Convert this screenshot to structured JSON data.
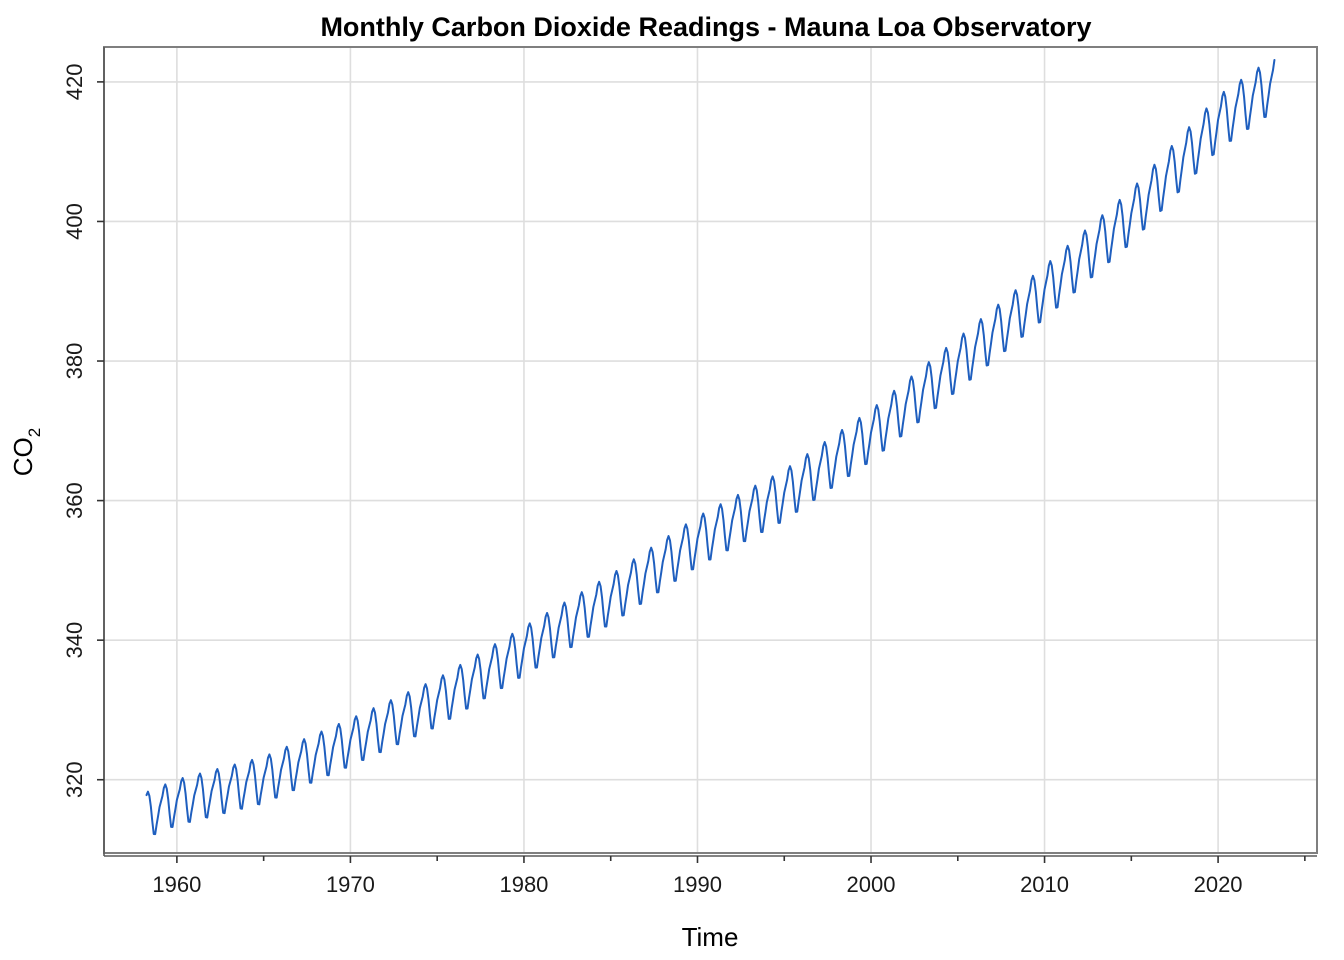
{
  "chart_data": {
    "type": "line",
    "title": "Monthly Carbon Dioxide Readings - Mauna Loa Observatory",
    "xlabel": "Time",
    "ylabel": "CO",
    "ylabel_subscript": "2",
    "xlim": [
      1955.8,
      2025.7
    ],
    "ylim": [
      309.5,
      425.0
    ],
    "x_ticks": [
      1960,
      1970,
      1980,
      1990,
      2000,
      2010,
      2020
    ],
    "x_minor_ticks": [
      1965,
      1975,
      1985,
      1995,
      2005,
      2015,
      2025
    ],
    "y_ticks": [
      320,
      340,
      360,
      380,
      400,
      420
    ],
    "grid": true,
    "series": [
      {
        "color": "#1f5fbf",
        "x_start": 1958.25,
        "x_step": 0.08333,
        "trend_anchor_years": [
          1958.25,
          1960,
          1965,
          1970,
          1975,
          1980,
          1985,
          1990,
          1995,
          2000,
          2005,
          2010,
          2015,
          2020,
          2023.25
        ],
        "trend_anchor_values": [
          315.0,
          316.8,
          320.0,
          325.4,
          331.1,
          338.5,
          345.9,
          354.2,
          360.8,
          369.4,
          379.6,
          389.9,
          400.8,
          414.2,
          419.8
        ],
        "seasonal_monthly_offsets": [
          0.3,
          1.0,
          1.7,
          2.8,
          3.2,
          2.5,
          0.9,
          -1.3,
          -3.2,
          -3.3,
          -2.0,
          -0.9
        ]
      }
    ]
  }
}
